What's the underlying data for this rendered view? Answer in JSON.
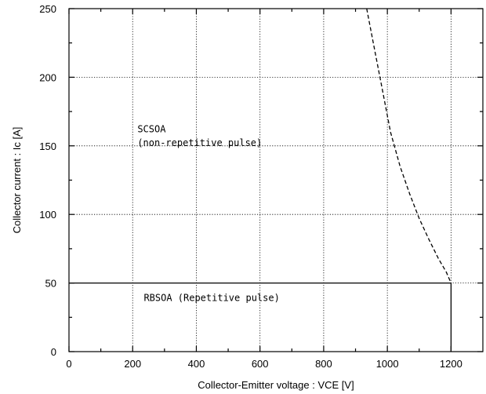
{
  "chart_data": {
    "type": "line",
    "title": "",
    "xlabel": "Collector-Emitter voltage  :  VCE [V]",
    "ylabel": "Collector current  :  Ic [A]",
    "xlim": [
      0,
      1300
    ],
    "ylim": [
      0,
      250
    ],
    "x_ticks": [
      0,
      200,
      400,
      600,
      800,
      1000,
      1200
    ],
    "y_ticks": [
      0,
      50,
      100,
      150,
      200,
      250
    ],
    "grid": true,
    "series": [
      {
        "style": "solid",
        "x": [
          0,
          1200,
          1200
        ],
        "y": [
          50,
          50,
          0
        ]
      },
      {
        "style": "dashed",
        "x": [
          935,
          960,
          985,
          1010,
          1040,
          1070,
          1100,
          1130,
          1160,
          1185,
          1200
        ],
        "y": [
          250,
          220,
          190,
          160,
          135,
          115,
          97,
          82,
          68,
          58,
          50
        ]
      }
    ],
    "annotations": [
      {
        "text": "SCSOA",
        "x": 215,
        "y": 160
      },
      {
        "text": "(non-repetitive pulse)",
        "x": 215,
        "y": 150
      },
      {
        "text": "RBSOA (Repetitive pulse)",
        "x": 235,
        "y": 37
      }
    ]
  }
}
